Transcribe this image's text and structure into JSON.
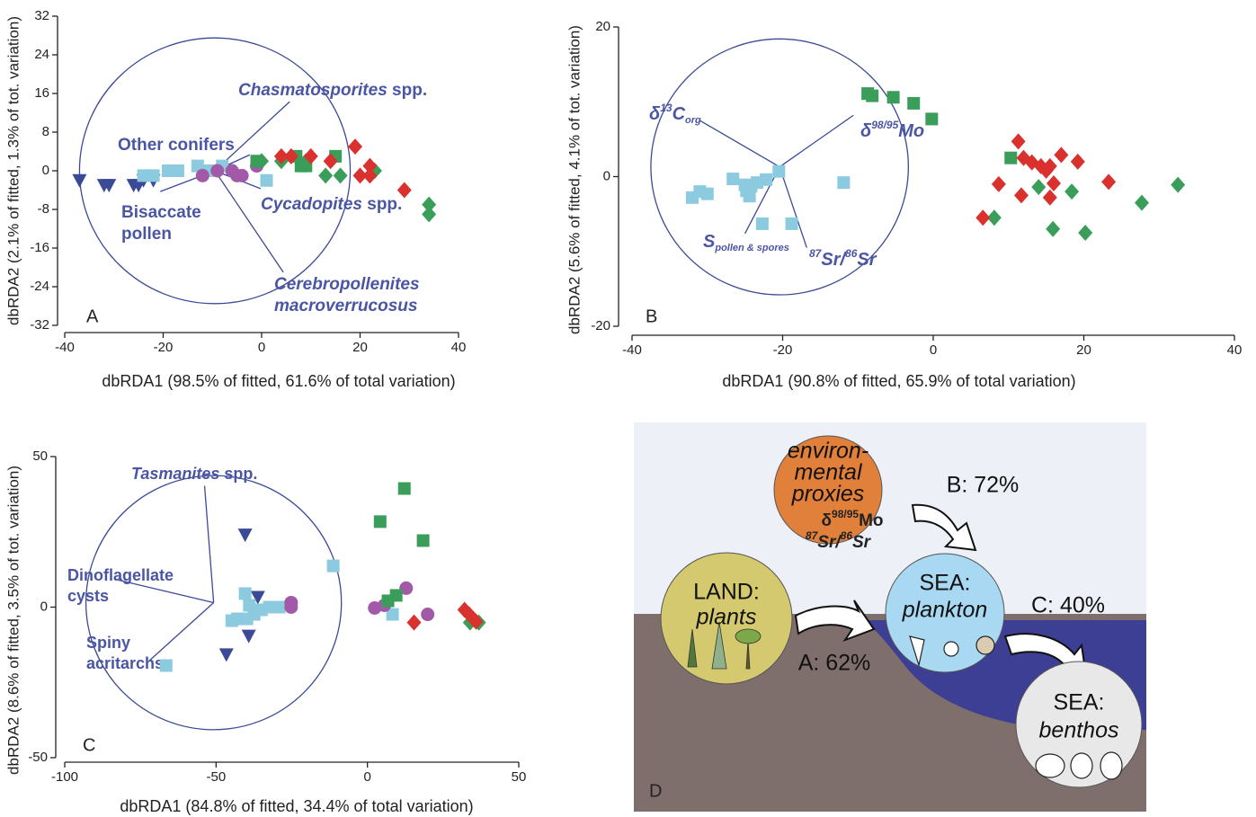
{
  "chart_data": [
    {
      "type": "scatter",
      "panel": "A",
      "x_label": "dbRDA1 (98.5% of fitted, 61.6% of total variation)",
      "y_label": "dbRDA2 (2.1% of fitted, 1.3% of tot. variation)",
      "xlim": [
        -40,
        40
      ],
      "ylim": [
        -32,
        32
      ],
      "xticks": [
        -40,
        -20,
        0,
        20,
        40
      ],
      "yticks": [
        -32,
        -24,
        -16,
        -8,
        0,
        8,
        16,
        24,
        32
      ],
      "series": [
        {
          "color": "#3a4a96",
          "marker": "triangle",
          "x": [
            -37,
            -32,
            -31,
            -26,
            -25,
            -24,
            -22
          ],
          "y": [
            -2,
            -3,
            -3,
            -3,
            -3,
            -2,
            -2
          ]
        },
        {
          "color": "#8ccbdf",
          "marker": "square",
          "x": [
            -24,
            -22,
            -19,
            -18,
            -17,
            -13,
            -11,
            -8,
            1
          ],
          "y": [
            -1,
            -1,
            0,
            0,
            0,
            1,
            0,
            1,
            -2
          ]
        },
        {
          "color": "#a259a8",
          "marker": "circle",
          "x": [
            -12,
            -9,
            -6,
            -5,
            -4,
            -1
          ],
          "y": [
            -1,
            0,
            0,
            -1,
            -1,
            1
          ]
        },
        {
          "color": "#3a9e5a",
          "marker": "square",
          "x": [
            -1,
            7,
            8,
            9,
            15
          ],
          "y": [
            2,
            3,
            1,
            1,
            3
          ]
        },
        {
          "color": "#3a9e5a",
          "marker": "diamond",
          "x": [
            0,
            4,
            9,
            13,
            16,
            23,
            34,
            34
          ],
          "y": [
            2,
            2,
            2,
            -1,
            -1,
            0,
            -7,
            -9
          ]
        },
        {
          "color": "#d9312e",
          "marker": "diamond",
          "x": [
            4,
            6,
            10,
            14,
            19,
            20,
            22,
            22,
            29
          ],
          "y": [
            3,
            3,
            3,
            2,
            5,
            -1,
            -1,
            1,
            -4
          ]
        }
      ],
      "circle": {
        "x": -9.5,
        "y": 0,
        "r": 27.5
      },
      "vectors": [
        {
          "x": 5.7,
          "y": 14.3,
          "label": [
            [
              {
                "text": "Chasmatosporites",
                "style": "i"
              },
              {
                "text": " spp."
              }
            ]
          ]
        },
        {
          "x": -2.4,
          "y": 3.3,
          "label": [
            [
              {
                "text": "Other conifers"
              }
            ]
          ]
        },
        {
          "x": -0.2,
          "y": -3.7,
          "label": [
            [
              {
                "text": "Cycadopites",
                "style": "i"
              },
              {
                "text": " spp."
              }
            ]
          ]
        },
        {
          "x": -20.6,
          "y": -4.3,
          "label": [
            [
              {
                "text": "Bisaccate"
              }
            ],
            [
              {
                "text": "pollen"
              }
            ]
          ]
        },
        {
          "x": 4.4,
          "y": -21,
          "label": [
            [
              {
                "text": "Cerebropollenites",
                "style": "i"
              }
            ],
            [
              {
                "text": "macroverrucosus",
                "style": "i"
              }
            ]
          ]
        }
      ]
    },
    {
      "type": "scatter",
      "panel": "B",
      "x_label": "dbRDA1 (90.8% of fitted, 65.9% of total variation)",
      "y_label": "dbRDA2 (5.6% of fitted, 4.1% of tot. variation)",
      "xlim": [
        -40,
        40
      ],
      "ylim": [
        -20,
        20
      ],
      "xticks": [
        -40,
        -20,
        0,
        20,
        40
      ],
      "yticks": [
        -20,
        0,
        20
      ],
      "series": [
        {
          "color": "#8ccbdf",
          "marker": "square",
          "x": [
            -32,
            -31,
            -30,
            -26.6,
            -25,
            -24.8,
            -24.4,
            -24.2,
            -23.4,
            -22.2,
            -20.5,
            -22.7,
            -18.8,
            -11.9
          ],
          "y": [
            -2.8,
            -2,
            -2.3,
            -0.3,
            -1.1,
            -1.9,
            -2.6,
            -1.3,
            -0.8,
            -0.4,
            0.7,
            -6.3,
            -6.3,
            -0.8
          ]
        },
        {
          "color": "#3a9e5a",
          "marker": "square",
          "x": [
            -8.7,
            -8.1,
            -5.3,
            -2.6,
            -0.2,
            10.3
          ],
          "y": [
            11.1,
            10.8,
            10.6,
            9.8,
            7.7,
            2.5
          ]
        },
        {
          "color": "#3a9e5a",
          "marker": "diamond",
          "x": [
            8.1,
            14,
            15.9,
            18.4,
            20.2,
            27.7,
            32.5
          ],
          "y": [
            -5.5,
            -1.4,
            -7,
            -2,
            -7.5,
            -3.5,
            -1.1
          ]
        },
        {
          "color": "#d9312e",
          "marker": "diamond",
          "x": [
            6.6,
            8.7,
            11.3,
            11.7,
            12,
            13.1,
            14.3,
            15,
            15.5,
            16,
            15.5,
            17,
            19.2,
            23.3
          ],
          "y": [
            -5.5,
            -1,
            4.7,
            -2.5,
            2.5,
            1.9,
            1.4,
            0.8,
            1.4,
            -0.9,
            -2.8,
            2.9,
            2,
            -0.7
          ]
        }
      ],
      "circle": {
        "x": -20.4,
        "y": 1.3,
        "r": 17.1
      },
      "vectors": [
        {
          "x": -31,
          "y": 7.5,
          "label": [
            [
              {
                "text": "δ",
                "style": "i"
              },
              {
                "text": "13",
                "style": "sup"
              },
              {
                "text": "C",
                "style": "i"
              },
              {
                "text": "org",
                "style": "sub"
              }
            ]
          ]
        },
        {
          "x": -10.6,
          "y": 8.2,
          "label": [
            [
              {
                "text": "δ",
                "style": "i"
              },
              {
                "text": "98/95",
                "style": "sup"
              },
              {
                "text": "Mo",
                "style": "i"
              }
            ]
          ]
        },
        {
          "x": -25,
          "y": -7.6,
          "label": [
            [
              {
                "text": "S",
                "style": "i"
              },
              {
                "text": "pollen & spores",
                "style": "sub"
              }
            ]
          ]
        },
        {
          "x": -16.8,
          "y": -9.5,
          "label": [
            [
              {
                "text": "87",
                "style": "sup"
              },
              {
                "text": "Sr/",
                "style": "i"
              },
              {
                "text": "86",
                "style": "sup"
              },
              {
                "text": "Sr",
                "style": "i"
              }
            ]
          ]
        }
      ]
    },
    {
      "type": "scatter",
      "panel": "C",
      "x_label": "dbRDA1 (84.8% of fitted, 34.4% of total variation)",
      "y_label": "dbRDA2 (8.6% of fitted, 3.5% of tot. variation)",
      "xlim": [
        -100,
        50
      ],
      "ylim": [
        -50,
        50
      ],
      "xticks": [
        -100,
        -50,
        0,
        50
      ],
      "yticks": [
        -50,
        0,
        50
      ],
      "series": [
        {
          "color": "#3a4a96",
          "marker": "triangle",
          "x": [
            -40.4,
            -36.2,
            -39.2,
            -46.6
          ],
          "y": [
            24,
            3.3,
            -9.6,
            -15.8
          ]
        },
        {
          "color": "#8ccbdf",
          "marker": "square",
          "x": [
            -66.5,
            -44.8,
            -43,
            -40.4,
            -39,
            -39.8,
            -37.4,
            -35,
            -32.4,
            -29.1,
            -11.3,
            8.3
          ],
          "y": [
            -19.4,
            -4.5,
            -3.9,
            4.5,
            0.6,
            -3.9,
            -2.4,
            -0.9,
            0,
            0,
            13.7,
            -2.4
          ]
        },
        {
          "color": "#a259a8",
          "marker": "circle",
          "x": [
            -25.2,
            -25.2,
            2.4,
            5.6,
            12.8,
            19.9
          ],
          "y": [
            1.5,
            0,
            -0.3,
            0.6,
            6.3,
            -2.4
          ]
        },
        {
          "color": "#3a9e5a",
          "marker": "square",
          "x": [
            12.2,
            4.2,
            18.4,
            6.8,
            9.5
          ],
          "y": [
            39.4,
            28.4,
            22.1,
            2.1,
            3.9
          ]
        },
        {
          "color": "#3a9e5a",
          "marker": "diamond",
          "x": [
            33.9,
            36.8
          ],
          "y": [
            -5.1,
            -5.1
          ]
        },
        {
          "color": "#d9312e",
          "marker": "diamond",
          "x": [
            15.4,
            32.1,
            33.6,
            35,
            35.9
          ],
          "y": [
            -5.1,
            -0.9,
            -2.4,
            -3.9,
            -4.8
          ]
        }
      ],
      "circle": {
        "x": -50.8,
        "y": 1.5,
        "r": 42.2
      },
      "vectors": [
        {
          "x": -53.8,
          "y": 40.3,
          "label": [
            [
              {
                "text": "Tasmanites",
                "style": "i"
              },
              {
                "text": " spp."
              }
            ]
          ]
        },
        {
          "x": -82.3,
          "y": 9,
          "label": [
            [
              {
                "text": "Dinoflagellate"
              }
            ],
            [
              {
                "text": "cysts"
              }
            ]
          ]
        },
        {
          "x": -72.2,
          "y": -17.9,
          "label": [
            [
              {
                "text": "Spiny"
              }
            ],
            [
              {
                "text": "acritarchs"
              }
            ]
          ]
        }
      ]
    }
  ],
  "diagram": {
    "panel": "D",
    "proxies": {
      "lines": [
        "environ-",
        "mental",
        "proxies"
      ],
      "mo": [
        "δ",
        "98/95",
        "Mo"
      ],
      "sr": [
        "87",
        "Sr/",
        "86",
        "Sr"
      ]
    },
    "land": [
      "LAND:",
      "plants"
    ],
    "plankton": [
      "SEA:",
      "plankton"
    ],
    "benthos": [
      "SEA:",
      "benthos"
    ],
    "arrows": [
      "B: 72%",
      "A: 62%",
      "C: 40%"
    ]
  }
}
